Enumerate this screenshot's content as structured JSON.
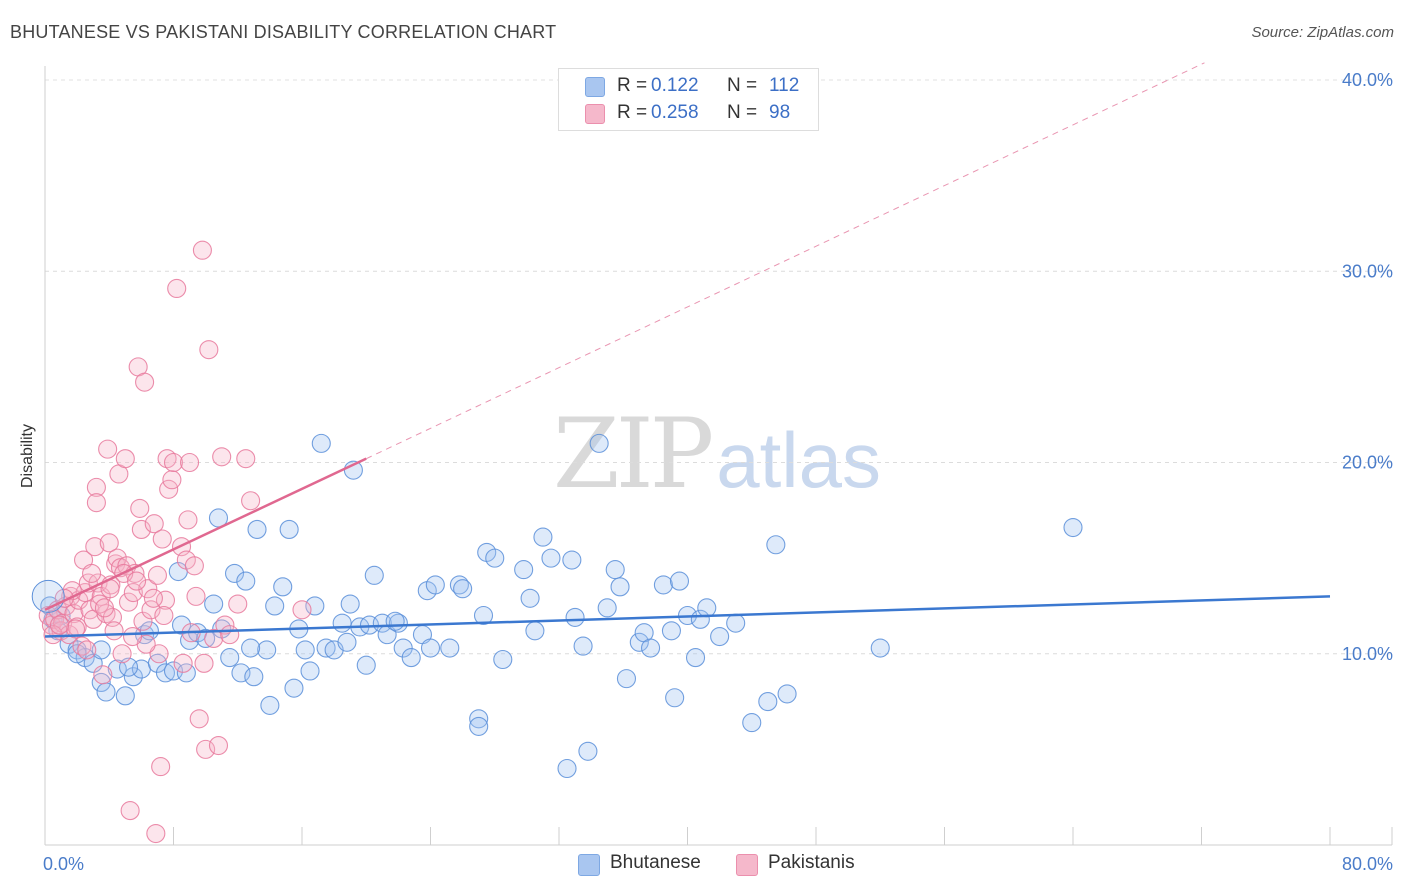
{
  "title": "BHUTANESE VS PAKISTANI DISABILITY CORRELATION CHART",
  "source": "Source: ZipAtlas.com",
  "watermark": {
    "zip": "ZIP",
    "atlas": "atlas"
  },
  "legend": {
    "rows": [
      {
        "r_label": "R =",
        "r_value": "0.122",
        "n_label": "N =",
        "n_value": "112",
        "color": "#a9c6f0"
      },
      {
        "r_label": "R =",
        "r_value": "0.258",
        "n_label": "N =",
        "n_value": "98",
        "color": "#f5b8cb"
      }
    ]
  },
  "bottom_legend": [
    {
      "label": "Bhutanese",
      "color": "#a9c6f0"
    },
    {
      "label": "Pakistanis",
      "color": "#f5b8cb"
    }
  ],
  "chart_data": {
    "type": "scatter",
    "title": "BHUTANESE VS PAKISTANI DISABILITY CORRELATION CHART",
    "xlabel": "",
    "ylabel": "Disability",
    "xlim": [
      0,
      80
    ],
    "ylim": [
      0,
      40
    ],
    "x_tick_labels": [
      "0.0%",
      "80.0%"
    ],
    "y_ticks": [
      10,
      20,
      30,
      40
    ],
    "y_tick_labels": [
      "10.0%",
      "20.0%",
      "30.0%",
      "40.0%"
    ],
    "grid": true,
    "series": [
      {
        "name": "Bhutanese",
        "color": "#5b8fd9",
        "fill": "rgba(160,195,240,0.35)",
        "trend": {
          "x0": 0,
          "y0": 10.9,
          "x1": 80,
          "y1": 13.0,
          "color": "#3b78d0"
        },
        "points": [
          [
            0.3,
            12.5
          ],
          [
            0.5,
            11.8
          ],
          [
            0.8,
            11.2
          ],
          [
            1.0,
            12.0
          ],
          [
            1.5,
            10.5
          ],
          [
            2.0,
            10.2
          ],
          [
            2.5,
            9.8
          ],
          [
            3.0,
            9.5
          ],
          [
            3.5,
            8.5
          ],
          [
            3.8,
            8.0
          ],
          [
            4.5,
            9.2
          ],
          [
            5.0,
            7.8
          ],
          [
            5.5,
            8.8
          ],
          [
            6.0,
            9.2
          ],
          [
            6.2,
            11.0
          ],
          [
            7.0,
            9.5
          ],
          [
            7.5,
            9.0
          ],
          [
            8.0,
            9.1
          ],
          [
            8.3,
            14.3
          ],
          [
            8.5,
            11.5
          ],
          [
            9.0,
            10.7
          ],
          [
            9.5,
            11.1
          ],
          [
            10.0,
            10.8
          ],
          [
            10.5,
            12.6
          ],
          [
            10.8,
            17.1
          ],
          [
            11.0,
            11.3
          ],
          [
            11.5,
            9.8
          ],
          [
            11.8,
            14.2
          ],
          [
            12.2,
            9.0
          ],
          [
            12.5,
            13.8
          ],
          [
            13.0,
            8.8
          ],
          [
            13.2,
            16.5
          ],
          [
            13.8,
            10.2
          ],
          [
            14.0,
            7.3
          ],
          [
            14.3,
            12.5
          ],
          [
            14.8,
            13.5
          ],
          [
            15.2,
            16.5
          ],
          [
            15.5,
            8.2
          ],
          [
            15.8,
            11.3
          ],
          [
            16.2,
            10.2
          ],
          [
            16.5,
            9.1
          ],
          [
            16.8,
            12.5
          ],
          [
            17.2,
            21.0
          ],
          [
            17.5,
            10.3
          ],
          [
            18.0,
            10.2
          ],
          [
            18.5,
            11.6
          ],
          [
            18.8,
            10.6
          ],
          [
            19.0,
            12.6
          ],
          [
            19.2,
            19.6
          ],
          [
            19.6,
            11.4
          ],
          [
            20.0,
            9.4
          ],
          [
            20.2,
            11.5
          ],
          [
            20.5,
            14.1
          ],
          [
            21.0,
            11.6
          ],
          [
            21.3,
            11.0
          ],
          [
            22.0,
            11.6
          ],
          [
            22.3,
            10.3
          ],
          [
            22.8,
            9.8
          ],
          [
            23.5,
            11.0
          ],
          [
            24.0,
            10.3
          ],
          [
            23.8,
            13.3
          ],
          [
            24.3,
            13.6
          ],
          [
            25.2,
            10.3
          ],
          [
            25.8,
            13.6
          ],
          [
            27.0,
            6.6
          ],
          [
            27.0,
            6.2
          ],
          [
            27.3,
            12.0
          ],
          [
            27.5,
            15.3
          ],
          [
            28.0,
            15.0
          ],
          [
            28.5,
            9.7
          ],
          [
            29.8,
            14.4
          ],
          [
            30.2,
            12.9
          ],
          [
            31.0,
            16.1
          ],
          [
            31.5,
            15.0
          ],
          [
            32.5,
            4.0
          ],
          [
            32.8,
            14.9
          ],
          [
            33.0,
            11.9
          ],
          [
            33.8,
            4.9
          ],
          [
            34.5,
            21.0
          ],
          [
            35.0,
            12.4
          ],
          [
            35.5,
            14.4
          ],
          [
            35.8,
            13.5
          ],
          [
            36.2,
            8.7
          ],
          [
            37.0,
            10.6
          ],
          [
            37.3,
            11.1
          ],
          [
            37.7,
            10.3
          ],
          [
            38.5,
            13.6
          ],
          [
            39.0,
            11.2
          ],
          [
            39.2,
            7.7
          ],
          [
            39.5,
            13.8
          ],
          [
            40.0,
            12.0
          ],
          [
            40.5,
            9.8
          ],
          [
            40.8,
            11.8
          ],
          [
            41.2,
            12.4
          ],
          [
            42.0,
            10.9
          ],
          [
            43.0,
            11.6
          ],
          [
            44.0,
            6.4
          ],
          [
            45.0,
            7.5
          ],
          [
            45.5,
            15.7
          ],
          [
            46.2,
            7.9
          ],
          [
            52.0,
            10.3
          ],
          [
            64.0,
            16.6
          ],
          [
            2.0,
            10.0
          ],
          [
            3.5,
            10.2
          ],
          [
            5.2,
            9.3
          ],
          [
            6.5,
            11.2
          ],
          [
            8.8,
            9.0
          ],
          [
            12.8,
            10.3
          ],
          [
            21.8,
            11.7
          ],
          [
            26.0,
            13.4
          ],
          [
            30.5,
            11.2
          ],
          [
            33.5,
            10.4
          ]
        ]
      },
      {
        "name": "Pakistanis",
        "color": "#e8799c",
        "fill": "rgba(245,180,200,0.35)",
        "trend": {
          "x0": 0,
          "y0": 12.3,
          "x1": 20,
          "y1": 20.2,
          "color": "#e06890",
          "dashed_extension": {
            "x0": 20,
            "y0": 20.2,
            "x1": 80,
            "y1": 44.0
          }
        },
        "points": [
          [
            0.2,
            12.0
          ],
          [
            0.4,
            11.5
          ],
          [
            0.6,
            11.8
          ],
          [
            0.8,
            12.3
          ],
          [
            1.0,
            11.2
          ],
          [
            1.1,
            11.6
          ],
          [
            1.3,
            12.5
          ],
          [
            1.5,
            11.0
          ],
          [
            1.6,
            13.0
          ],
          [
            1.8,
            12.1
          ],
          [
            2.0,
            11.4
          ],
          [
            2.1,
            12.8
          ],
          [
            2.3,
            10.4
          ],
          [
            2.4,
            14.9
          ],
          [
            2.5,
            13.2
          ],
          [
            2.7,
            13.7
          ],
          [
            2.8,
            12.3
          ],
          [
            3.0,
            11.8
          ],
          [
            3.1,
            15.6
          ],
          [
            3.2,
            18.7
          ],
          [
            3.2,
            17.9
          ],
          [
            3.3,
            13.7
          ],
          [
            3.5,
            13.0
          ],
          [
            3.6,
            8.9
          ],
          [
            3.8,
            12.1
          ],
          [
            3.9,
            20.7
          ],
          [
            4.0,
            15.8
          ],
          [
            4.1,
            13.6
          ],
          [
            4.2,
            11.9
          ],
          [
            4.4,
            14.7
          ],
          [
            4.5,
            15.0
          ],
          [
            4.6,
            19.4
          ],
          [
            4.7,
            14.5
          ],
          [
            4.8,
            10.0
          ],
          [
            5.0,
            20.2
          ],
          [
            5.1,
            14.6
          ],
          [
            5.2,
            12.7
          ],
          [
            5.3,
            1.8
          ],
          [
            5.5,
            13.2
          ],
          [
            5.6,
            14.2
          ],
          [
            5.8,
            25.0
          ],
          [
            5.9,
            17.6
          ],
          [
            6.0,
            16.5
          ],
          [
            6.1,
            11.7
          ],
          [
            6.2,
            24.2
          ],
          [
            6.4,
            13.4
          ],
          [
            6.6,
            12.3
          ],
          [
            6.8,
            16.8
          ],
          [
            7.0,
            14.1
          ],
          [
            7.1,
            10.0
          ],
          [
            7.2,
            4.1
          ],
          [
            7.3,
            16.0
          ],
          [
            7.5,
            12.8
          ],
          [
            7.6,
            20.2
          ],
          [
            7.7,
            18.6
          ],
          [
            7.9,
            19.1
          ],
          [
            8.0,
            20.0
          ],
          [
            8.2,
            29.1
          ],
          [
            8.5,
            15.6
          ],
          [
            8.8,
            14.9
          ],
          [
            8.9,
            17.0
          ],
          [
            9.0,
            20.0
          ],
          [
            9.1,
            11.1
          ],
          [
            9.3,
            14.6
          ],
          [
            9.4,
            13.0
          ],
          [
            9.6,
            6.6
          ],
          [
            9.8,
            31.1
          ],
          [
            9.9,
            9.5
          ],
          [
            10.0,
            5.0
          ],
          [
            10.2,
            25.9
          ],
          [
            10.5,
            10.8
          ],
          [
            10.8,
            5.2
          ],
          [
            11.0,
            20.3
          ],
          [
            11.2,
            11.5
          ],
          [
            11.5,
            11.0
          ],
          [
            12.0,
            12.6
          ],
          [
            12.5,
            20.2
          ],
          [
            12.8,
            18.0
          ],
          [
            16.0,
            12.3
          ],
          [
            0.5,
            11.0
          ],
          [
            1.7,
            13.3
          ],
          [
            2.6,
            10.2
          ],
          [
            3.4,
            12.6
          ],
          [
            4.3,
            11.2
          ],
          [
            4.9,
            14.2
          ],
          [
            5.7,
            13.8
          ],
          [
            6.3,
            10.5
          ],
          [
            6.9,
            0.6
          ],
          [
            7.4,
            12.0
          ],
          [
            8.6,
            9.5
          ],
          [
            1.2,
            12.9
          ],
          [
            1.9,
            11.3
          ],
          [
            2.9,
            14.2
          ],
          [
            3.7,
            12.4
          ],
          [
            4.05,
            13.4
          ],
          [
            5.45,
            10.9
          ],
          [
            6.75,
            12.9
          ],
          [
            0.9,
            11.5
          ]
        ]
      }
    ]
  }
}
